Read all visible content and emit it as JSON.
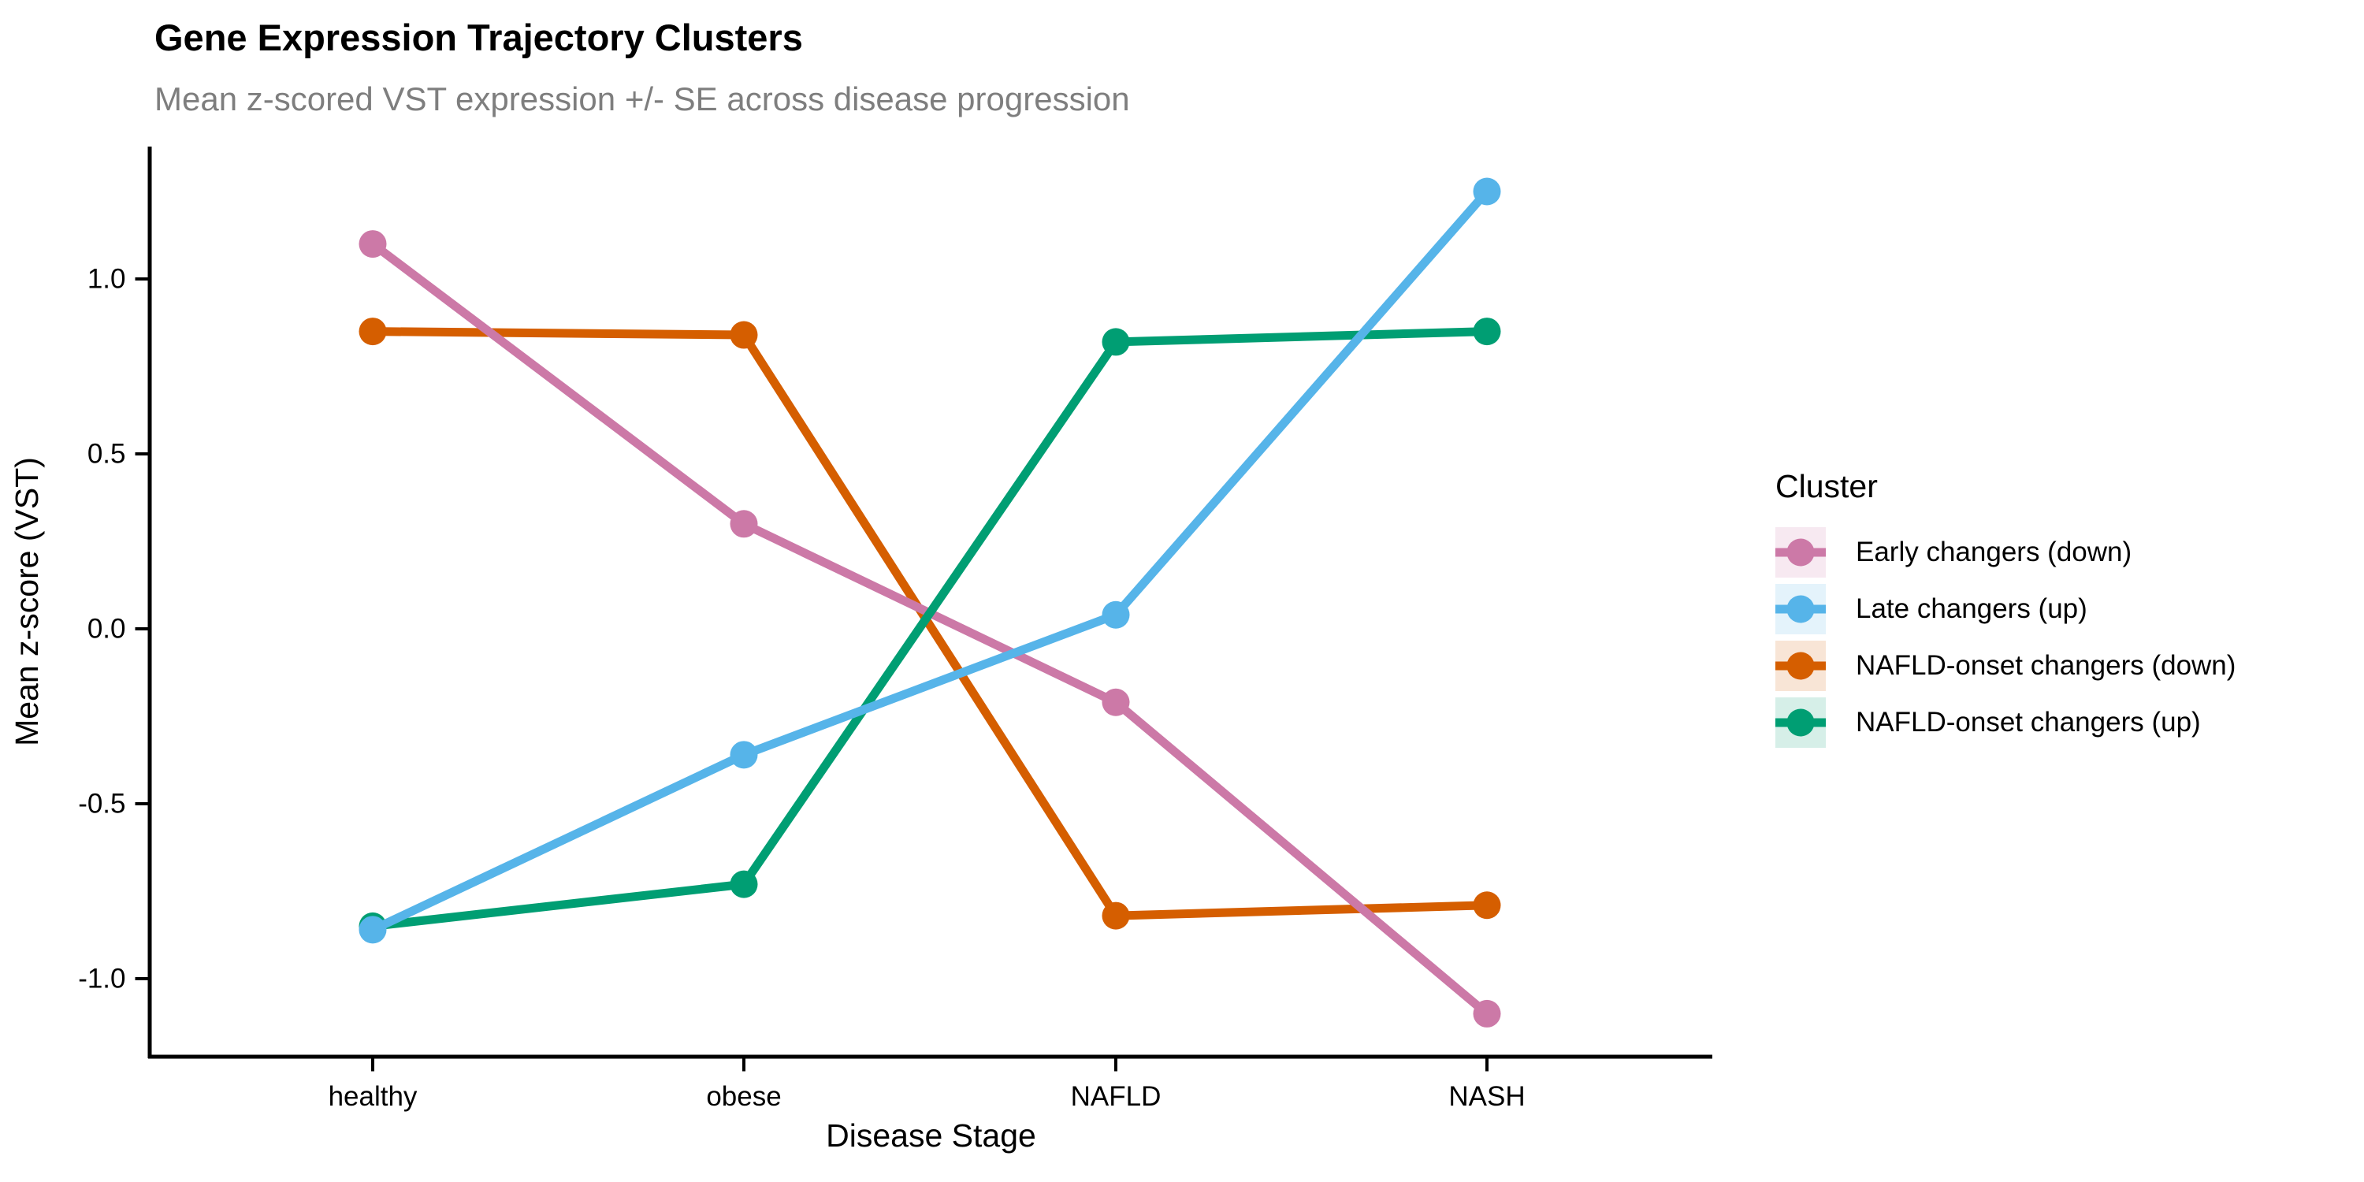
{
  "title": "Gene Expression Trajectory Clusters",
  "subtitle": "Mean z-scored VST expression +/- SE across disease progression",
  "chart_data": {
    "type": "line",
    "categories": [
      "healthy",
      "obese",
      "NAFLD",
      "NASH"
    ],
    "series": [
      {
        "name": "Early changers (down)",
        "color": "#CC79A7",
        "values": [
          1.1,
          0.3,
          -0.21,
          -1.1
        ]
      },
      {
        "name": "Late changers (up)",
        "color": "#56B4E9",
        "values": [
          -0.86,
          -0.36,
          0.04,
          1.25
        ]
      },
      {
        "name": "NAFLD-onset changers (down)",
        "color": "#D55E00",
        "values": [
          0.85,
          0.84,
          -0.82,
          -0.79
        ]
      },
      {
        "name": "NAFLD-onset changers (up)",
        "color": "#009E73",
        "values": [
          -0.85,
          -0.73,
          0.82,
          0.85
        ]
      }
    ],
    "title": "Gene Expression Trajectory Clusters",
    "subtitle": "Mean z-scored VST expression +/- SE across disease progression",
    "xlabel": "Disease Stage",
    "ylabel": "Mean z-score (VST)",
    "y_ticks": [
      1.0,
      0.5,
      0.0,
      -0.5,
      -1.0
    ],
    "ylim": [
      -1.22,
      1.38
    ],
    "grid": false,
    "legend_title": "Cluster",
    "legend_position": "right",
    "axis_color": "#000000",
    "subtitle_color": "#7e7e7e"
  }
}
